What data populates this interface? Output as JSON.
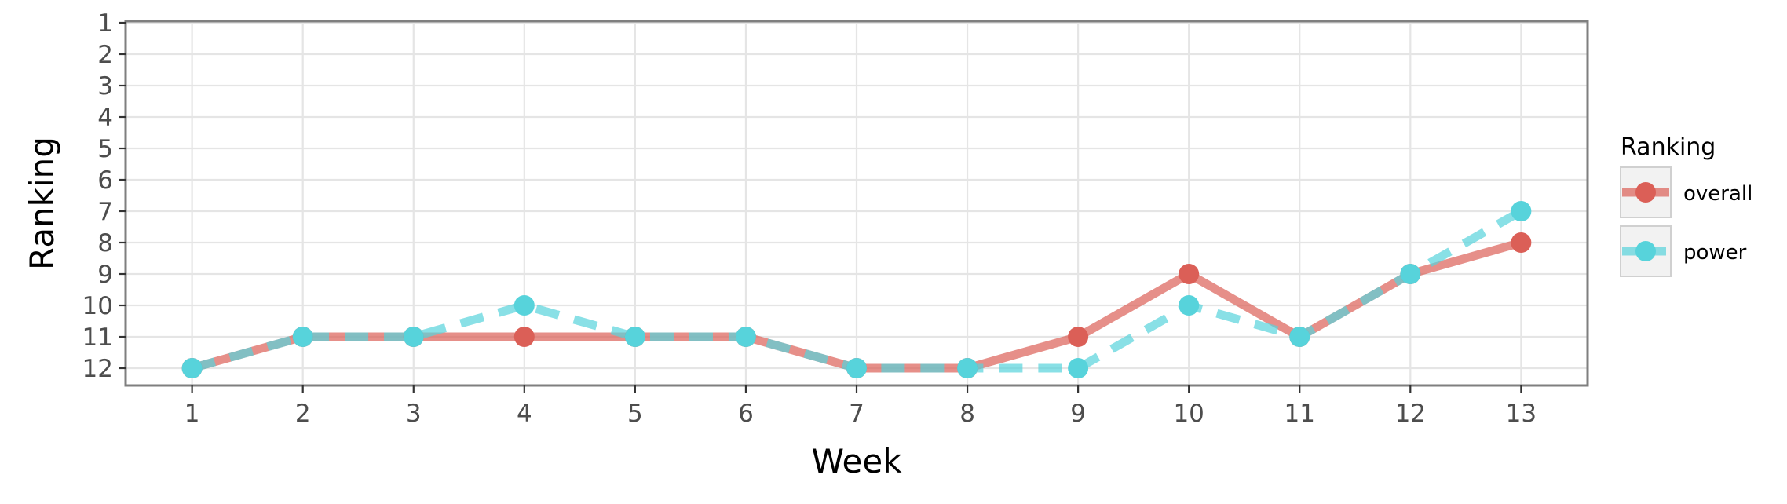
{
  "chart_data": {
    "type": "line",
    "xlabel": "Week",
    "ylabel": "Ranking",
    "x": [
      1,
      2,
      3,
      4,
      5,
      6,
      7,
      8,
      9,
      10,
      11,
      12,
      13
    ],
    "x_ticks": [
      "1",
      "2",
      "3",
      "4",
      "5",
      "6",
      "7",
      "8",
      "9",
      "10",
      "11",
      "12",
      "13"
    ],
    "y_ticks": [
      "1",
      "2",
      "3",
      "4",
      "5",
      "6",
      "7",
      "8",
      "9",
      "10",
      "11",
      "12"
    ],
    "y_reversed": true,
    "xlim": [
      0.4,
      13.6
    ],
    "ylim": [
      0.95,
      12.55
    ],
    "grid": true,
    "legend": {
      "title": "Ranking",
      "position": "right"
    },
    "series": [
      {
        "name": "overall",
        "color": "#db5f57",
        "line_style": "solid",
        "values": [
          12,
          11,
          11,
          11,
          11,
          11,
          12,
          12,
          11,
          9,
          11,
          9,
          8
        ]
      },
      {
        "name": "power",
        "color": "#57d3db",
        "line_style": "dashed",
        "values": [
          12,
          11,
          11,
          10,
          11,
          11,
          12,
          12,
          12,
          10,
          11,
          9,
          7
        ]
      }
    ]
  }
}
